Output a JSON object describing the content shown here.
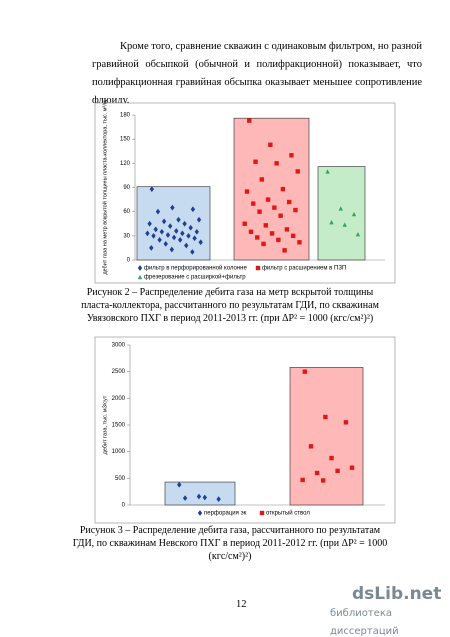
{
  "paragraph": "Кроме того, сравнение скважин с одинаковым фильтром, но разной гравийной обсыпкой (обычной и полифракционной) показывает, что полифракционная гравийная обсыпка оказывает меньшее сопротивление флюиду.",
  "chart_data": [
    {
      "type": "strip",
      "y_label": "дебит газа на метр вскрытой толщины пласта-коллектора, тыс. м³/м",
      "ylim": [
        0,
        180
      ],
      "yticks": [
        0,
        30,
        60,
        90,
        120,
        150,
        180
      ],
      "grid": false,
      "legend": "bottom",
      "series": [
        {
          "name": "фильтр в перфорированной колонне",
          "color": "#1f3f99",
          "box_color": "#c6daf0",
          "marker": "diamond",
          "max": 91,
          "values": [
            88,
            65,
            63,
            60,
            50,
            50,
            48,
            45,
            45,
            42,
            40,
            38,
            36,
            35,
            35,
            33,
            33,
            31,
            30,
            30,
            28,
            27,
            25,
            25,
            22,
            20,
            18,
            15,
            13,
            10
          ]
        },
        {
          "name": "фильтр с расширением в ПЗП",
          "color": "#e01818",
          "box_color": "#ffb8b8",
          "marker": "square",
          "max": 176,
          "values": [
            173,
            143,
            130,
            122,
            120,
            110,
            100,
            88,
            85,
            75,
            72,
            70,
            65,
            62,
            60,
            55,
            45,
            43,
            38,
            35,
            33,
            30,
            28,
            25,
            22,
            20,
            12
          ]
        },
        {
          "name": "фрезерование с расширкой+фильтр",
          "color": "#3aa35a",
          "box_color": "#c4ecc8",
          "marker": "triangle",
          "max": 116,
          "values": [
            110,
            64,
            57,
            47,
            44,
            32
          ]
        }
      ]
    },
    {
      "type": "strip",
      "y_label": "дебит газа, тыс. м3/сут",
      "ylim": [
        0,
        3000
      ],
      "yticks": [
        0,
        500,
        1000,
        1500,
        2000,
        2500,
        3000
      ],
      "grid": false,
      "legend": "bottom",
      "series": [
        {
          "name": "перфорация эк",
          "color": "#1f3f99",
          "box_color": "#c6daf0",
          "marker": "diamond",
          "max": 430,
          "values": [
            380,
            160,
            110,
            130,
            140
          ]
        },
        {
          "name": "открытый ствол",
          "color": "#e01818",
          "box_color": "#ffb8b8",
          "marker": "square",
          "max": 2580,
          "values": [
            2500,
            1650,
            1550,
            1100,
            880,
            700,
            600,
            640,
            470,
            460
          ]
        }
      ]
    }
  ],
  "captions": [
    "Рисунок 2 – Распределение дебита газа на метр вскрытой толщины пласта-коллектора, рассчитанного по результатам ГДИ, по скважинам Увязовского ПХГ в период 2011-2013 гг. (при ΔP² = 1000 (кгс/см²)²)",
    "Рисунок 3 – Распределение дебита газа, рассчитанного по результатам ГДИ, по скважинам Невского ПХГ в период 2011-2012 гг. (при ΔP² = 1000 (кгс/см²)²)"
  ],
  "page_number": "12",
  "watermark": {
    "logo": "dsLib.net",
    "tagline": "библиотека диссертаций"
  }
}
